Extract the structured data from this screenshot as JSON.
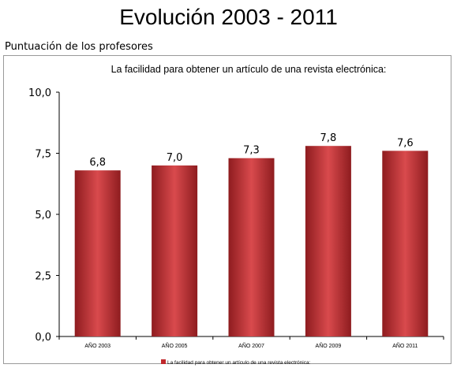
{
  "page": {
    "title": "Evolución 2003 - 2011",
    "subtitle": "Puntuación de los profesores"
  },
  "colors": {
    "bar": "#c0282c",
    "bar_dark": "#8e1c1f",
    "bar_light": "#d94a4d"
  },
  "chart_data": {
    "type": "bar",
    "title": "La facilidad para obtener un artículo de una revista electrónica:",
    "categories": [
      "AÑO 2003",
      "AÑO 2005",
      "AÑO 2007",
      "AÑO 2009",
      "AÑO 2011"
    ],
    "series": [
      {
        "name": "La facilidad para obtener un artículo de una revista electrónica:",
        "values": [
          6.8,
          7.0,
          7.3,
          7.8,
          7.6
        ]
      }
    ],
    "value_labels": [
      "6,8",
      "7,0",
      "7,3",
      "7,8",
      "7,6"
    ],
    "ylim": [
      0,
      10
    ],
    "yticks": [
      0,
      2.5,
      5,
      7.5,
      10
    ],
    "ytick_labels": [
      "0,0",
      "2,5",
      "5,0",
      "7,5",
      "10,0"
    ],
    "grid": false,
    "legend": "bottom",
    "xlabel": "",
    "ylabel": ""
  }
}
